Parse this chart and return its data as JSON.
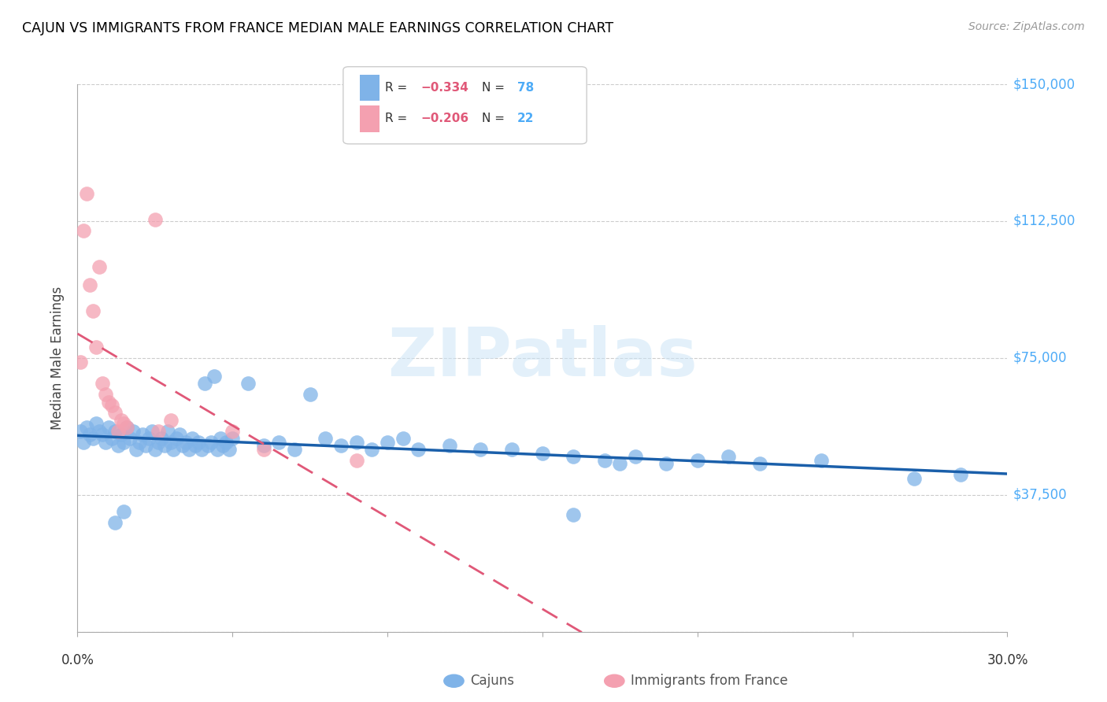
{
  "title": "CAJUN VS IMMIGRANTS FROM FRANCE MEDIAN MALE EARNINGS CORRELATION CHART",
  "source": "Source: ZipAtlas.com",
  "ylabel": "Median Male Earnings",
  "yticks": [
    0,
    37500,
    75000,
    112500,
    150000
  ],
  "ytick_labels": [
    "",
    "$37,500",
    "$75,000",
    "$112,500",
    "$150,000"
  ],
  "xmin": 0.0,
  "xmax": 0.3,
  "ymin": 0,
  "ymax": 150000,
  "cajun_color": "#7fb3e8",
  "france_color": "#f4a0b0",
  "cajun_line_color": "#1a5faa",
  "france_line_color": "#e05878",
  "watermark": "ZIPatlas",
  "cajun_points": [
    [
      0.001,
      55000
    ],
    [
      0.002,
      52000
    ],
    [
      0.003,
      56000
    ],
    [
      0.004,
      54000
    ],
    [
      0.005,
      53000
    ],
    [
      0.006,
      57000
    ],
    [
      0.007,
      55000
    ],
    [
      0.008,
      54000
    ],
    [
      0.009,
      52000
    ],
    [
      0.01,
      56000
    ],
    [
      0.011,
      53000
    ],
    [
      0.012,
      55000
    ],
    [
      0.013,
      51000
    ],
    [
      0.014,
      54000
    ],
    [
      0.015,
      52000
    ],
    [
      0.016,
      56000
    ],
    [
      0.017,
      53000
    ],
    [
      0.018,
      55000
    ],
    [
      0.019,
      50000
    ],
    [
      0.02,
      52000
    ],
    [
      0.021,
      54000
    ],
    [
      0.022,
      51000
    ],
    [
      0.023,
      53000
    ],
    [
      0.024,
      55000
    ],
    [
      0.025,
      50000
    ],
    [
      0.026,
      52000
    ],
    [
      0.027,
      53000
    ],
    [
      0.028,
      51000
    ],
    [
      0.029,
      55000
    ],
    [
      0.03,
      52000
    ],
    [
      0.031,
      50000
    ],
    [
      0.032,
      53000
    ],
    [
      0.033,
      54000
    ],
    [
      0.034,
      51000
    ],
    [
      0.035,
      52000
    ],
    [
      0.036,
      50000
    ],
    [
      0.037,
      53000
    ],
    [
      0.038,
      51000
    ],
    [
      0.039,
      52000
    ],
    [
      0.04,
      50000
    ],
    [
      0.041,
      68000
    ],
    [
      0.042,
      51000
    ],
    [
      0.043,
      52000
    ],
    [
      0.044,
      70000
    ],
    [
      0.045,
      50000
    ],
    [
      0.046,
      53000
    ],
    [
      0.047,
      51000
    ],
    [
      0.048,
      52000
    ],
    [
      0.049,
      50000
    ],
    [
      0.05,
      53000
    ],
    [
      0.055,
      68000
    ],
    [
      0.06,
      51000
    ],
    [
      0.065,
      52000
    ],
    [
      0.07,
      50000
    ],
    [
      0.075,
      65000
    ],
    [
      0.08,
      53000
    ],
    [
      0.085,
      51000
    ],
    [
      0.09,
      52000
    ],
    [
      0.095,
      50000
    ],
    [
      0.1,
      52000
    ],
    [
      0.105,
      53000
    ],
    [
      0.11,
      50000
    ],
    [
      0.12,
      51000
    ],
    [
      0.13,
      50000
    ],
    [
      0.14,
      50000
    ],
    [
      0.15,
      49000
    ],
    [
      0.16,
      48000
    ],
    [
      0.17,
      47000
    ],
    [
      0.175,
      46000
    ],
    [
      0.18,
      48000
    ],
    [
      0.19,
      46000
    ],
    [
      0.2,
      47000
    ],
    [
      0.21,
      48000
    ],
    [
      0.22,
      46000
    ],
    [
      0.24,
      47000
    ],
    [
      0.27,
      42000
    ],
    [
      0.285,
      43000
    ],
    [
      0.012,
      30000
    ],
    [
      0.015,
      33000
    ],
    [
      0.16,
      32000
    ]
  ],
  "france_points": [
    [
      0.001,
      74000
    ],
    [
      0.002,
      110000
    ],
    [
      0.003,
      120000
    ],
    [
      0.004,
      95000
    ],
    [
      0.005,
      88000
    ],
    [
      0.006,
      78000
    ],
    [
      0.007,
      100000
    ],
    [
      0.008,
      68000
    ],
    [
      0.009,
      65000
    ],
    [
      0.01,
      63000
    ],
    [
      0.011,
      62000
    ],
    [
      0.012,
      60000
    ],
    [
      0.013,
      55000
    ],
    [
      0.014,
      58000
    ],
    [
      0.015,
      57000
    ],
    [
      0.016,
      56000
    ],
    [
      0.025,
      113000
    ],
    [
      0.026,
      55000
    ],
    [
      0.03,
      58000
    ],
    [
      0.05,
      55000
    ],
    [
      0.06,
      50000
    ],
    [
      0.09,
      47000
    ]
  ]
}
